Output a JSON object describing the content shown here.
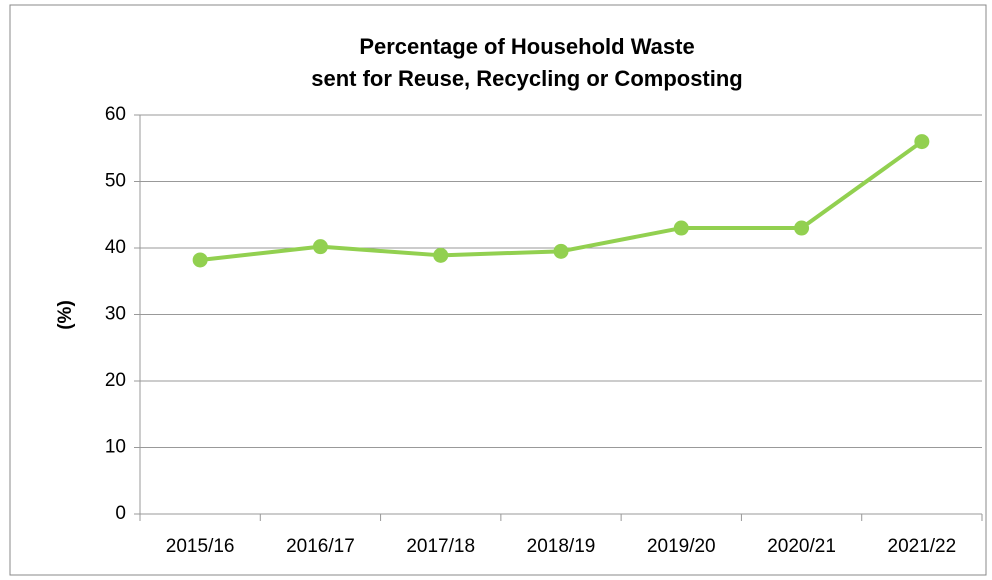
{
  "chart_data": {
    "type": "line",
    "title": [
      "Percentage of Household Waste",
      "sent for Reuse, Recycling or Composting"
    ],
    "y_label": "(%)",
    "categories": [
      "2015/16",
      "2016/17",
      "2017/18",
      "2018/19",
      "2019/20",
      "2020/21",
      "2021/22"
    ],
    "values": [
      38.2,
      40.2,
      38.9,
      39.5,
      43.0,
      43.0,
      56.0
    ],
    "color": "#92d050",
    "ylim": [
      0,
      60
    ],
    "yticks": [
      0,
      10,
      20,
      30,
      40,
      50,
      60
    ],
    "grid": true
  }
}
